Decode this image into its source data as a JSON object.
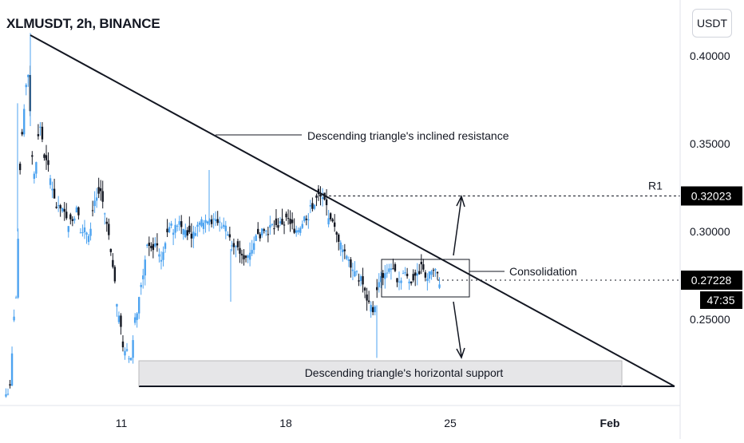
{
  "chart_title": "XLMUSDT, 2h, BINANCE",
  "currency_button": "USDT",
  "chart_data": {
    "type": "candlestick",
    "symbol": "XLMUSDT",
    "interval": "2h",
    "exchange": "BINANCE",
    "x_ticks": [
      "11",
      "18",
      "25",
      "Feb"
    ],
    "y_ticks": [
      "0.40000",
      "0.35000",
      "0.30000",
      "0.25000"
    ],
    "ylim": [
      0.2,
      0.42
    ],
    "series_colors": {
      "up": "#4da3f0",
      "down": "#131722"
    },
    "candle_closes": [
      0.21,
      0.262,
      0.355,
      0.39,
      0.332,
      0.36,
      0.339,
      0.326,
      0.312,
      0.31,
      0.305,
      0.312,
      0.298,
      0.3,
      0.318,
      0.323,
      0.304,
      0.28,
      0.252,
      0.23,
      0.228,
      0.254,
      0.275,
      0.294,
      0.292,
      0.286,
      0.297,
      0.302,
      0.307,
      0.301,
      0.299,
      0.303,
      0.306,
      0.309,
      0.306,
      0.305,
      0.301,
      0.294,
      0.288,
      0.286,
      0.291,
      0.297,
      0.3,
      0.301,
      0.302,
      0.305,
      0.306,
      0.302,
      0.304,
      0.309,
      0.315,
      0.32,
      0.317,
      0.306,
      0.298,
      0.292,
      0.286,
      0.279,
      0.272,
      0.262,
      0.255,
      0.27,
      0.276,
      0.279,
      0.274,
      0.276,
      0.273,
      0.275,
      0.279,
      0.275,
      0.277,
      0.272
    ],
    "horizontal_levels": [
      {
        "label": "R1",
        "value": 0.32023
      },
      {
        "label": "",
        "value": 0.27228
      }
    ],
    "price_labels": {
      "r1": "0.32023",
      "last": "0.27228",
      "countdown": "47:35"
    },
    "annotations": {
      "resistance": "Descending triangle's inclined resistance",
      "consolidation": "Consolidation",
      "support": "Descending triangle's horizontal support",
      "r1": "R1"
    }
  }
}
